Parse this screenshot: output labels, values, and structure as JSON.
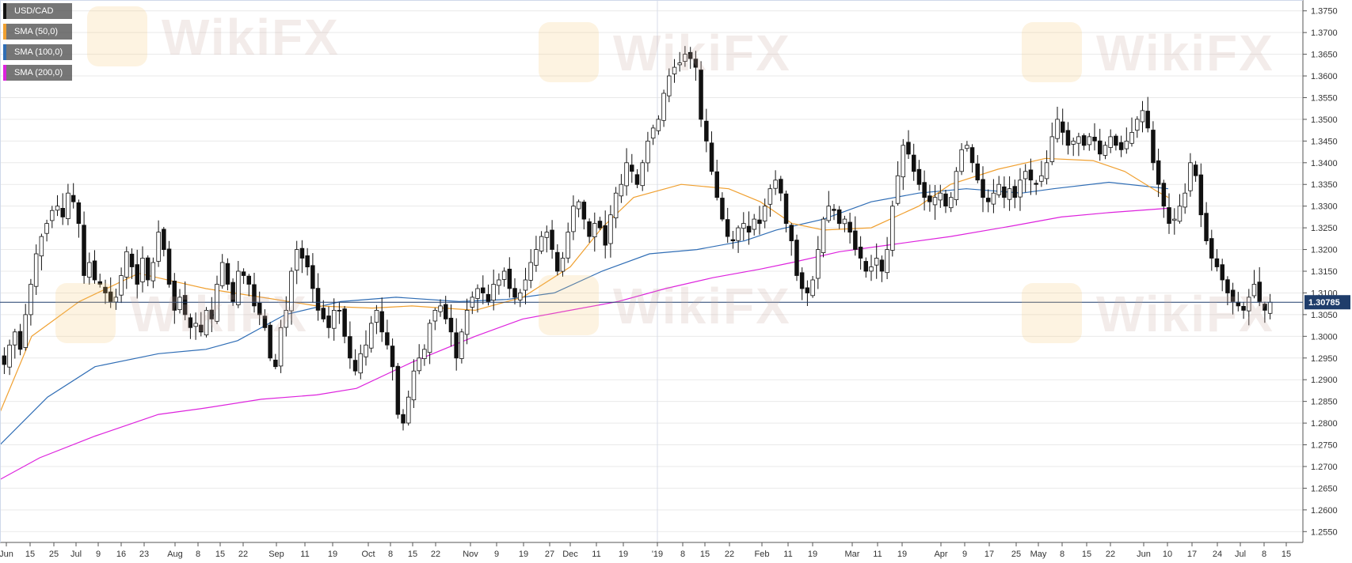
{
  "watermark": "WikiFX",
  "legend": [
    {
      "label": "USD/CAD",
      "color": "#111111"
    },
    {
      "label": "SMA (50,0)",
      "color": "#f0a030"
    },
    {
      "label": "SMA (100,0)",
      "color": "#2f6db5"
    },
    {
      "label": "SMA (200,0)",
      "color": "#dd22dd"
    }
  ],
  "chart_data": {
    "type": "candlestick",
    "symbol": "USD/CAD",
    "timeframe": "daily",
    "ylim": [
      1.2525,
      1.3775
    ],
    "y_ticks": [
      "1.2550",
      "1.2600",
      "1.2650",
      "1.2700",
      "1.2750",
      "1.2800",
      "1.2850",
      "1.2900",
      "1.2950",
      "1.3000",
      "1.3050",
      "1.3100",
      "1.3150",
      "1.3200",
      "1.3250",
      "1.3300",
      "1.3350",
      "1.3400",
      "1.3450",
      "1.3500",
      "1.3550",
      "1.3600",
      "1.3650",
      "1.3700",
      "1.3750"
    ],
    "x_ticks": [
      "Jun",
      "15",
      "25",
      "Jul",
      "9",
      "16",
      "23",
      "Aug",
      "8",
      "15",
      "22",
      "Sep",
      "11",
      "19",
      "Oct",
      "8",
      "15",
      "22",
      "Nov",
      "9",
      "19",
      "27",
      "Dec",
      "11",
      "19",
      "'19",
      "8",
      "15",
      "22",
      "Feb",
      "11",
      "19",
      "Mar",
      "11",
      "19",
      "Apr",
      "9",
      "17",
      "25",
      "May",
      "8",
      "15",
      "22",
      "Jun",
      "10",
      "17",
      "24",
      "Jul",
      "8",
      "15"
    ],
    "current_price": 1.30785,
    "current_price_label": "1.30785",
    "closes": [
      1.2935,
      1.298,
      1.301,
      1.297,
      1.305,
      1.312,
      1.319,
      1.323,
      1.326,
      1.329,
      1.33,
      1.3275,
      1.333,
      1.331,
      1.326,
      1.314,
      1.317,
      1.313,
      1.312,
      1.31,
      1.308,
      1.309,
      1.314,
      1.3195,
      1.316,
      1.312,
      1.318,
      1.313,
      1.317,
      1.324,
      1.32,
      1.312,
      1.306,
      1.309,
      1.305,
      1.302,
      1.303,
      1.301,
      1.306,
      1.304,
      1.312,
      1.317,
      1.312,
      1.308,
      1.315,
      1.314,
      1.312,
      1.307,
      1.305,
      1.302,
      1.295,
      1.293,
      1.302,
      1.306,
      1.315,
      1.32,
      1.318,
      1.316,
      1.311,
      1.306,
      1.304,
      1.302,
      1.306,
      1.306,
      1.3,
      1.295,
      1.292,
      1.296,
      1.298,
      1.303,
      1.306,
      1.301,
      1.298,
      1.293,
      1.282,
      1.28,
      1.286,
      1.292,
      1.295,
      1.297,
      1.303,
      1.306,
      1.307,
      1.304,
      1.301,
      1.295,
      1.301,
      1.306,
      1.309,
      1.311,
      1.31,
      1.308,
      1.312,
      1.313,
      1.315,
      1.311,
      1.309,
      1.31,
      1.313,
      1.317,
      1.32,
      1.323,
      1.324,
      1.32,
      1.315,
      1.318,
      1.324,
      1.33,
      1.331,
      1.327,
      1.323,
      1.326,
      1.325,
      1.321,
      1.328,
      1.333,
      1.335,
      1.34,
      1.338,
      1.335,
      1.34,
      1.345,
      1.348,
      1.35,
      1.356,
      1.36,
      1.362,
      1.363,
      1.365,
      1.364,
      1.362,
      1.35,
      1.345,
      1.338,
      1.332,
      1.327,
      1.323,
      1.322,
      1.325,
      1.326,
      1.324,
      1.327,
      1.326,
      1.33,
      1.334,
      1.336,
      1.333,
      1.326,
      1.322,
      1.314,
      1.311,
      1.31,
      1.313,
      1.32,
      1.327,
      1.33,
      1.329,
      1.326,
      1.327,
      1.324,
      1.32,
      1.318,
      1.315,
      1.316,
      1.318,
      1.315,
      1.32,
      1.33,
      1.337,
      1.344,
      1.342,
      1.338,
      1.335,
      1.332,
      1.331,
      1.332,
      1.333,
      1.33,
      1.332,
      1.338,
      1.343,
      1.344,
      1.34,
      1.336,
      1.332,
      1.331,
      1.333,
      1.335,
      1.332,
      1.334,
      1.332,
      1.336,
      1.338,
      1.336,
      1.335,
      1.337,
      1.34,
      1.346,
      1.35,
      1.347,
      1.344,
      1.345,
      1.346,
      1.344,
      1.346,
      1.345,
      1.342,
      1.344,
      1.346,
      1.344,
      1.343,
      1.345,
      1.347,
      1.35,
      1.352,
      1.348,
      1.34,
      1.335,
      1.33,
      1.326,
      1.327,
      1.33,
      1.333,
      1.34,
      1.337,
      1.328,
      1.322,
      1.318,
      1.316,
      1.313,
      1.31,
      1.308,
      1.307,
      1.306,
      1.309,
      1.312,
      1.308,
      1.306,
      1.30785
    ],
    "sma50": [
      [
        0,
        1.2825
      ],
      [
        40,
        1.3
      ],
      [
        100,
        1.308
      ],
      [
        175,
        1.3145
      ],
      [
        260,
        1.311
      ],
      [
        330,
        1.309
      ],
      [
        400,
        1.307
      ],
      [
        470,
        1.3065
      ],
      [
        520,
        1.307
      ],
      [
        600,
        1.306
      ],
      [
        660,
        1.309
      ],
      [
        720,
        1.316
      ],
      [
        760,
        1.325
      ],
      [
        800,
        1.332
      ],
      [
        860,
        1.335
      ],
      [
        920,
        1.334
      ],
      [
        960,
        1.331
      ],
      [
        1000,
        1.326
      ],
      [
        1040,
        1.3245
      ],
      [
        1100,
        1.325
      ],
      [
        1160,
        1.33
      ],
      [
        1200,
        1.335
      ],
      [
        1260,
        1.3385
      ],
      [
        1320,
        1.341
      ],
      [
        1380,
        1.3405
      ],
      [
        1420,
        1.338
      ],
      [
        1460,
        1.3335
      ],
      [
        1475,
        1.332
      ]
    ],
    "sma100": [
      [
        0,
        1.275
      ],
      [
        60,
        1.286
      ],
      [
        120,
        1.293
      ],
      [
        200,
        1.296
      ],
      [
        260,
        1.297
      ],
      [
        300,
        1.299
      ],
      [
        360,
        1.305
      ],
      [
        430,
        1.308
      ],
      [
        500,
        1.309
      ],
      [
        580,
        1.308
      ],
      [
        640,
        1.3085
      ],
      [
        700,
        1.31
      ],
      [
        760,
        1.315
      ],
      [
        820,
        1.319
      ],
      [
        880,
        1.32
      ],
      [
        940,
        1.322
      ],
      [
        980,
        1.3245
      ],
      [
        1040,
        1.327
      ],
      [
        1100,
        1.331
      ],
      [
        1160,
        1.333
      ],
      [
        1220,
        1.334
      ],
      [
        1290,
        1.333
      ],
      [
        1330,
        1.334
      ],
      [
        1400,
        1.3355
      ],
      [
        1475,
        1.334
      ]
    ],
    "sma200": [
      [
        0,
        1.267
      ],
      [
        50,
        1.272
      ],
      [
        120,
        1.277
      ],
      [
        200,
        1.282
      ],
      [
        260,
        1.2835
      ],
      [
        330,
        1.2855
      ],
      [
        400,
        1.2865
      ],
      [
        450,
        1.288
      ],
      [
        520,
        1.294
      ],
      [
        600,
        1.3
      ],
      [
        660,
        1.304
      ],
      [
        720,
        1.306
      ],
      [
        780,
        1.308
      ],
      [
        840,
        1.311
      ],
      [
        900,
        1.3135
      ],
      [
        960,
        1.3155
      ],
      [
        1000,
        1.317
      ],
      [
        1060,
        1.3195
      ],
      [
        1120,
        1.321
      ],
      [
        1200,
        1.323
      ],
      [
        1280,
        1.3255
      ],
      [
        1340,
        1.3275
      ],
      [
        1400,
        1.3285
      ],
      [
        1475,
        1.3295
      ]
    ]
  }
}
